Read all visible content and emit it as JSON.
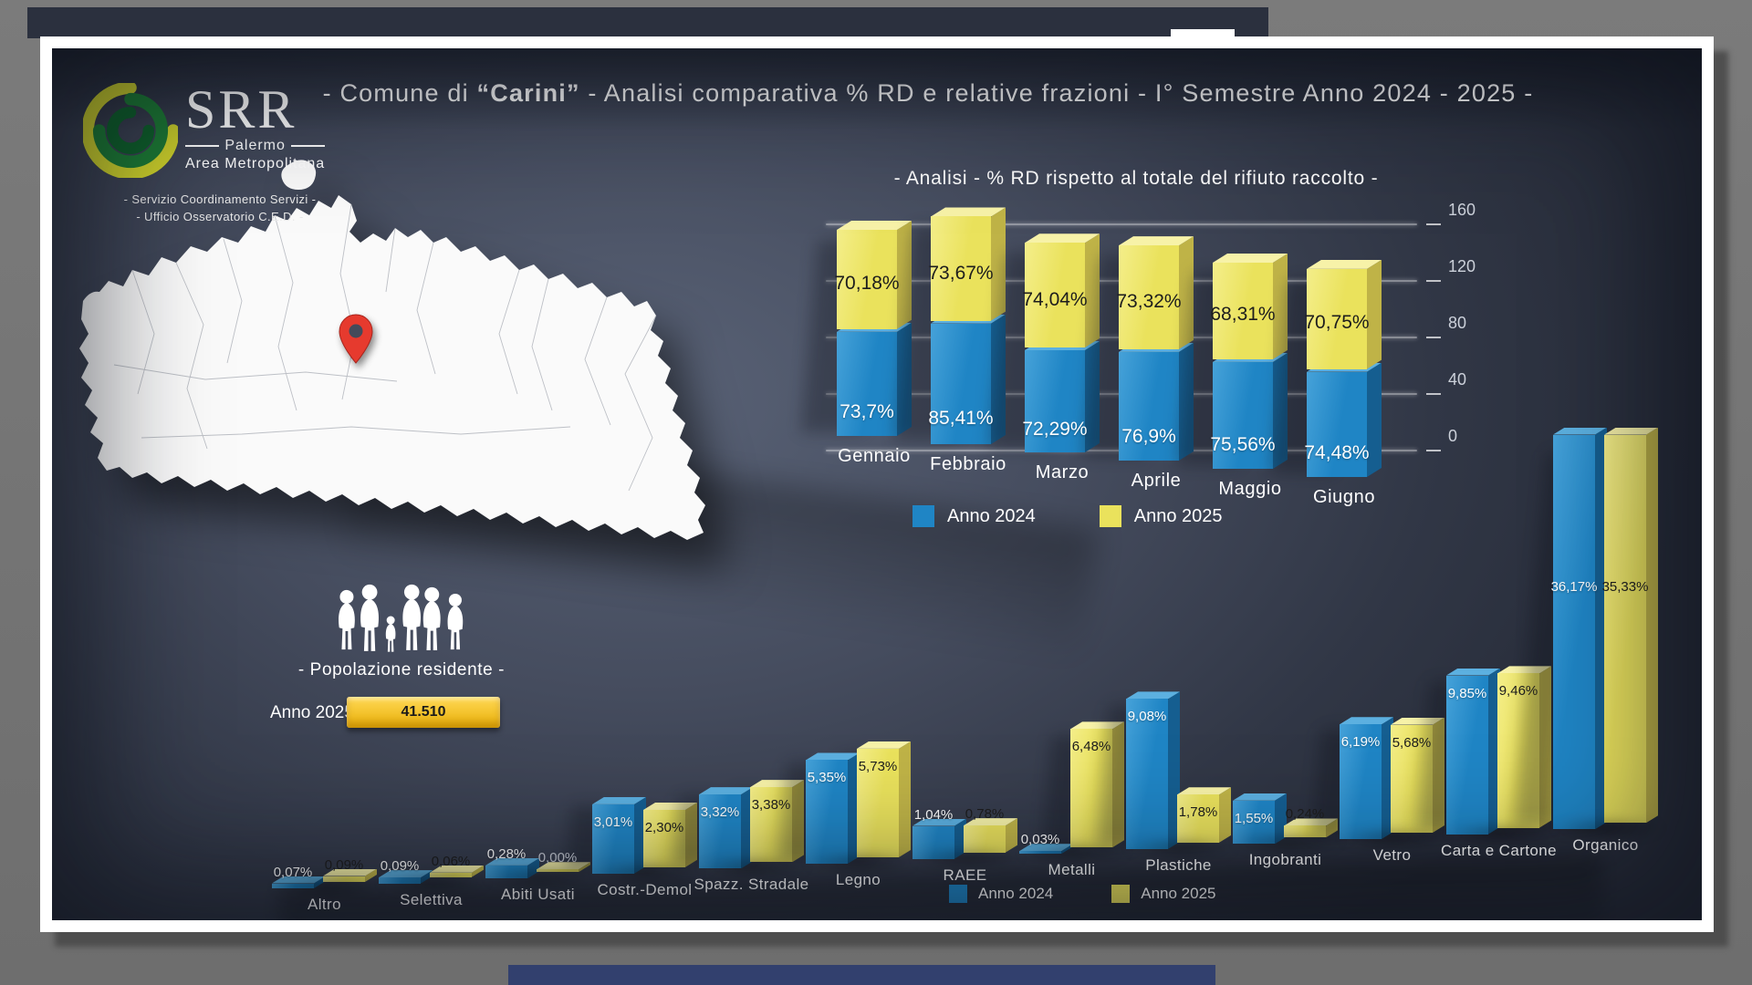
{
  "header": {
    "prefix": "- Comune di ",
    "town": "“Carini”",
    "suffix": " - Analisi comparativa % RD e relative frazioni - I° Semestre Anno 2024 - 2025 -"
  },
  "logo": {
    "acronym": "SRR",
    "line1": "Palermo",
    "line2": "Area Metropolitana",
    "sub1": "- Servizio Coordinamento Servizi -",
    "sub2": "- Ufficio Osservatorio C.E.D. -"
  },
  "population": {
    "title": "- Popolazione residente -",
    "year_label": "Anno 2025",
    "value": "41.510"
  },
  "icons": {
    "logo": "srr-swirl-logo",
    "map_pin": "location-pin",
    "family": "family-silhouette"
  },
  "colors": {
    "blue": {
      "light": "#46a2d9",
      "base": "#1f85c5",
      "side": "#155e90",
      "top": "#5cb0e0"
    },
    "yellow": {
      "light": "#f4ee8a",
      "base": "#eae25c",
      "side": "#bfb347",
      "top": "#f7f2a8"
    },
    "pop_bar_top": "#ffd957",
    "pop_bar_bottom": "#e9af06",
    "pin_red": "#e63a2e",
    "map_fill": "#fafafa"
  },
  "chart_data": [
    {
      "type": "bar",
      "variant": "stacked-3d",
      "title": "- Analisi - % RD rispetto al totale del rifiuto raccolto -",
      "categories": [
        "Gennaio",
        "Febbraio",
        "Marzo",
        "Aprile",
        "Maggio",
        "Giugno"
      ],
      "series": [
        {
          "name": "Anno 2024",
          "color": "#1f85c5",
          "values": [
            73.7,
            85.41,
            72.29,
            76.9,
            75.56,
            74.48
          ],
          "labels": [
            "73,7%",
            "85,41%",
            "72,29%",
            "76,9%",
            "75,56%",
            "74,48%"
          ]
        },
        {
          "name": "Anno 2025",
          "color": "#eae25c",
          "values": [
            70.18,
            73.67,
            74.04,
            73.32,
            68.31,
            70.75
          ],
          "labels": [
            "70,18%",
            "73,67%",
            "74,04%",
            "73,32%",
            "68,31%",
            "70,75%"
          ]
        }
      ],
      "ylabel": "",
      "ylim": [
        0,
        160
      ],
      "yticks": [
        0,
        40,
        80,
        120,
        160
      ],
      "grid": true,
      "legend": [
        "Anno 2024",
        "Anno 2025"
      ],
      "legend_position": "bottom"
    },
    {
      "type": "bar",
      "variant": "grouped-3d",
      "title": "",
      "categories": [
        "Altro",
        "Selettiva",
        "Abiti Usati",
        "Costr.-Demol",
        "Spazz. Stradale",
        "Legno",
        "RAEE",
        "Metalli",
        "Plastiche",
        "Ingobranti",
        "Vetro",
        "Carta e Cartone",
        "Organico"
      ],
      "series": [
        {
          "name": "Anno 2024",
          "color": "#1f85c5",
          "values": [
            0.07,
            0.09,
            0.28,
            3.01,
            3.32,
            5.35,
            1.04,
            0.03,
            9.08,
            1.55,
            6.19,
            9.85,
            36.17
          ],
          "labels": [
            "0,07%",
            "0,09%",
            "0,28%",
            "3,01%",
            "3,32%",
            "5,35%",
            "1,04%",
            "0,03%",
            "9,08%",
            "1,55%",
            "6,19%",
            "9,85%",
            "36,17%"
          ]
        },
        {
          "name": "Anno 2025",
          "color": "#eae25c",
          "values": [
            0.09,
            0.06,
            0.0,
            2.3,
            3.38,
            5.73,
            0.78,
            6.48,
            1.78,
            0.24,
            5.68,
            9.46,
            35.33
          ],
          "labels": [
            "0,09%",
            "0,06%",
            "0,00%",
            "2,30%",
            "3,38%",
            "5,73%",
            "0,78%",
            "6,48%",
            "1,78%",
            "0,24%",
            "5,68%",
            "9,46%",
            "35,33%"
          ]
        }
      ],
      "grid": false,
      "legend": [
        "Anno 2024",
        "Anno 2025"
      ],
      "legend_position": "bottom"
    }
  ]
}
